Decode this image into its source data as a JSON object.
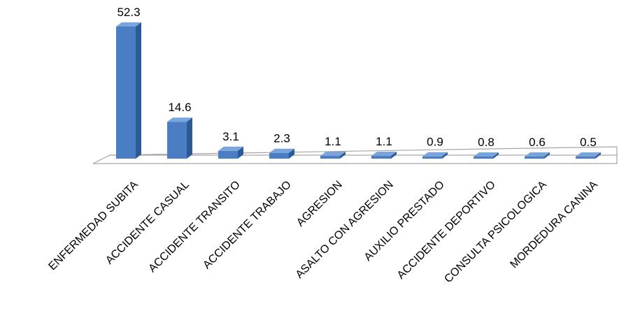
{
  "chart_data": {
    "type": "bar",
    "style": "3d-column",
    "categories": [
      "ENFERMEDAD  SUBITA",
      "ACCIDENTE CASUAL",
      "ACCIDENTE TRANSITO",
      "ACCIDENTE TRABAJO",
      "AGRESION",
      "ASALTO CON AGRESION",
      "AUXILIO PRESTADO",
      "ACCIDENTE  DEPORTIVO",
      "CONSULTA PSICOLOGICA",
      "MORDEDURA CANINA"
    ],
    "values": [
      52.3,
      14.6,
      3.1,
      2.3,
      1.1,
      1.1,
      0.9,
      0.8,
      0.6,
      0.5
    ],
    "data_labels": [
      "52.3",
      "14.6",
      "3.1",
      "2.3",
      "1.1",
      "1.1",
      "0.9",
      "0.8",
      "0.6",
      "0.5"
    ],
    "title": "",
    "xlabel": "",
    "ylabel": "",
    "ylim": [
      0,
      52.3
    ],
    "grid": false,
    "legend": "none",
    "colors": {
      "bar_front": "#4a7ec4",
      "bar_side": "#2c5a96",
      "bar_top": "#7aa5dc",
      "floor_fill": "#ffffff",
      "floor_stroke": "#a6a6a6",
      "text": "#000000"
    }
  }
}
